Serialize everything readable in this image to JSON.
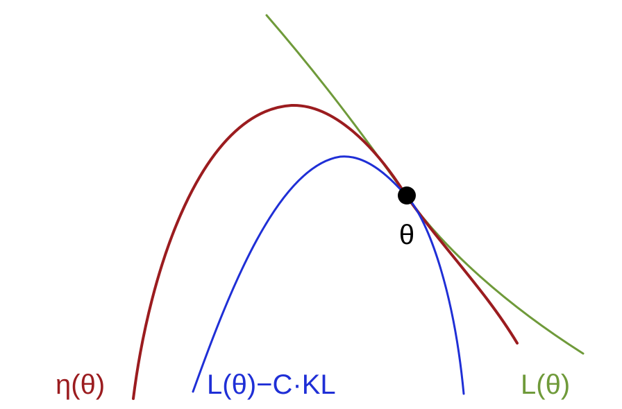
{
  "curves": {
    "eta": {
      "label": "η(θ)",
      "color": "#9b1c1f"
    },
    "lower_bound": {
      "label": "L(θ)−C·KL",
      "color": "#1f2fd6"
    },
    "surrogate": {
      "label": "L(θ)",
      "color": "#6f9a3a"
    }
  },
  "point": {
    "label": "θ",
    "color": "#000000"
  }
}
